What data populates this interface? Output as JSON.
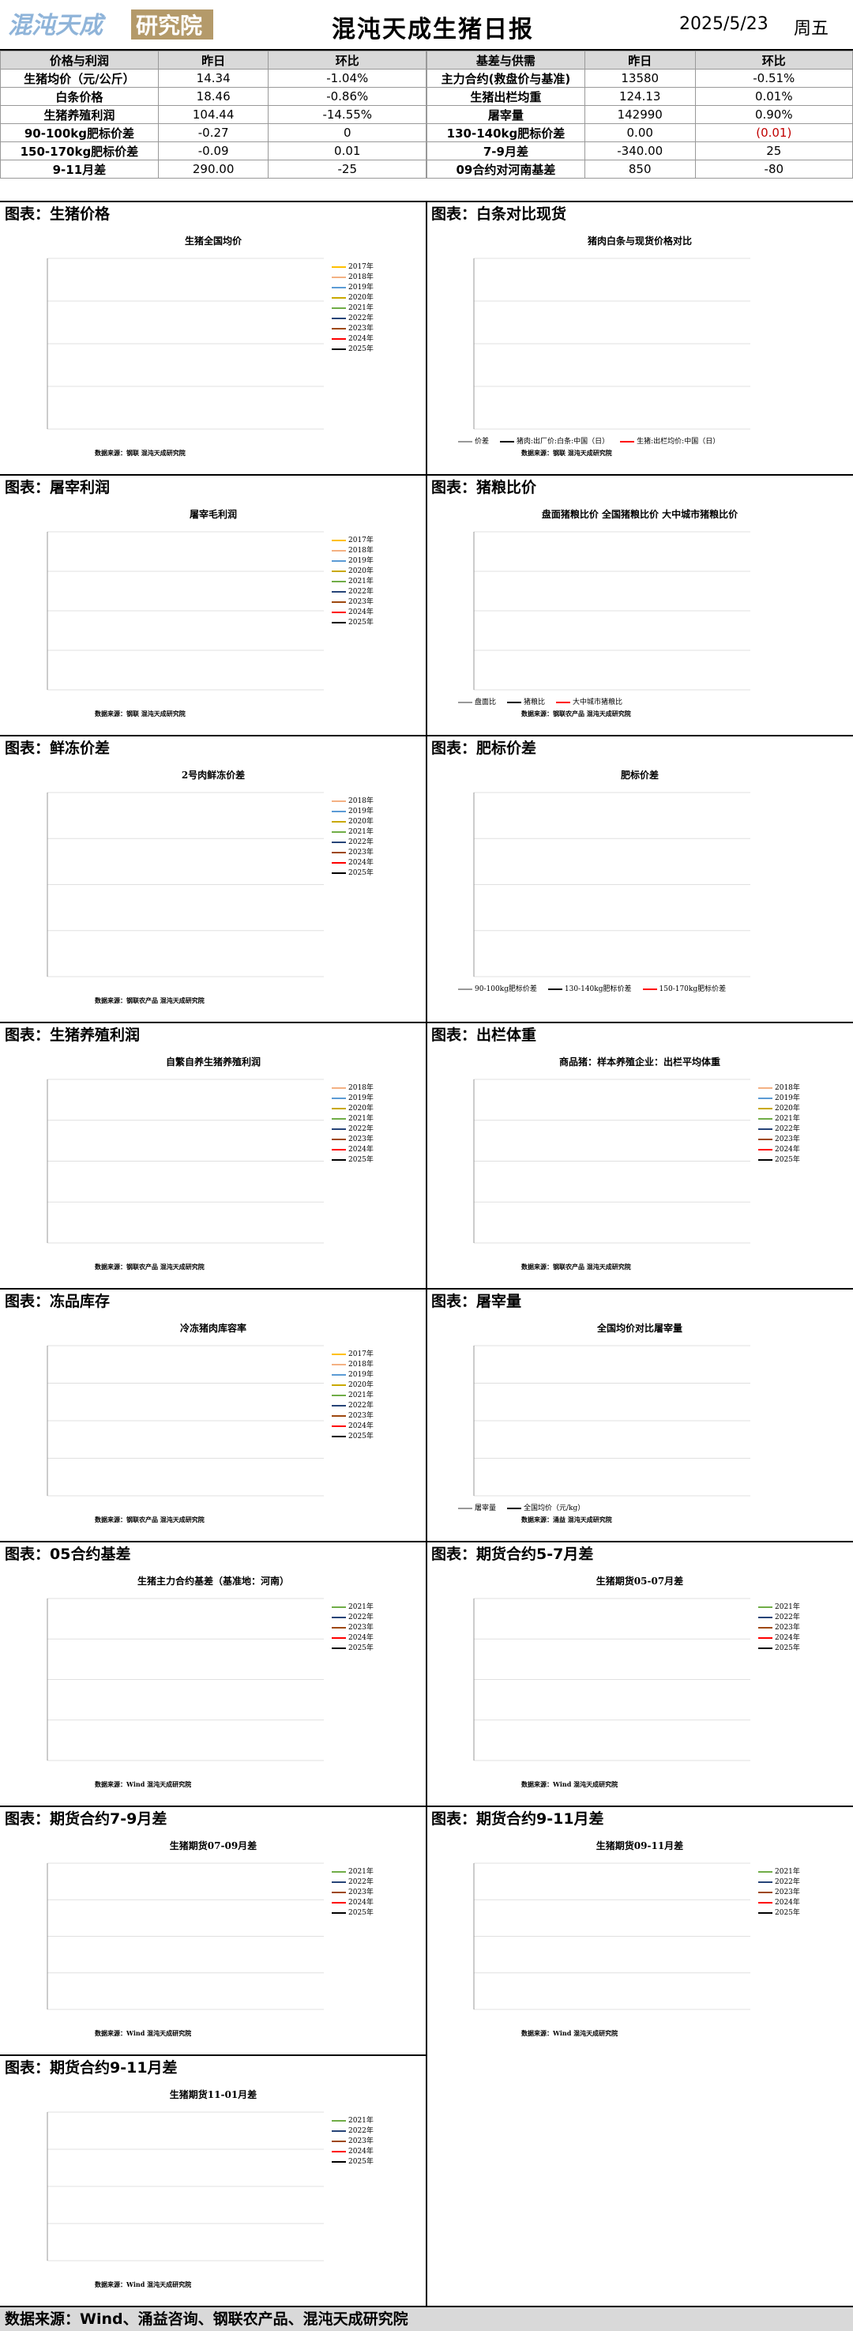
{
  "header": {
    "logo_text": "混沌天成研究院",
    "title": "混沌天成生猪日报",
    "date": "2025/5/23",
    "weekday": "周五"
  },
  "left_table": {
    "headers": [
      "价格与利润",
      "昨日",
      "环比"
    ],
    "rows": [
      [
        "生猪均价（元/公斤）",
        "14.34",
        "-1.04%"
      ],
      [
        "白条价格",
        "18.46",
        "-0.86%"
      ],
      [
        "生猪养殖利润",
        "104.44",
        "-14.55%"
      ],
      [
        "90-100kg肥标价差",
        "-0.27",
        "0"
      ],
      [
        "150-170kg肥标价差",
        "-0.09",
        "0.01"
      ],
      [
        "9-11月差",
        "290.00",
        "-25"
      ]
    ]
  },
  "right_table": {
    "headers": [
      "基差与供需",
      "昨日",
      "环比"
    ],
    "rows": [
      [
        "主力合约(救盘价与基准)",
        "13580",
        "-0.51%"
      ],
      [
        "生猪出栏均重",
        "124.13",
        "0.01%"
      ],
      [
        "屠宰量",
        "142990",
        "0.90%"
      ],
      [
        "130-140kg肥标价差",
        "0.00",
        "(0.01)"
      ],
      [
        "7-9月差",
        "-340.00",
        "25"
      ],
      [
        "09合约对河南基差",
        "850",
        "-80"
      ]
    ]
  },
  "sections": [
    {
      "heading": "图表：生猪价格",
      "chart_title": "生猪全国均价",
      "source": "数据来源：钢联 混沌天成研究院",
      "legend": [
        "2017年",
        "2018年",
        "2019年",
        "2020年",
        "2021年",
        "2022年",
        "2023年",
        "2024年",
        "2025年"
      ]
    },
    {
      "heading": "图表：白条对比现货",
      "chart_title": "猪肉白条与现货价格对比",
      "source": "数据来源：钢联 混沌天成研究院",
      "legend": [
        "价差",
        "猪肉:出厂价:白条:中国（日）",
        "生猪:出栏均价:中国（日）"
      ]
    },
    {
      "heading": "图表：屠宰利润",
      "chart_title": "屠宰毛利润",
      "source": "数据来源：钢联 混沌天成研究院",
      "legend": [
        "2017年",
        "2018年",
        "2019年",
        "2020年",
        "2021年",
        "2022年",
        "2023年",
        "2024年",
        "2025年"
      ]
    },
    {
      "heading": "图表：猪粮比价",
      "chart_title": "盘面猪粮比价 全国猪粮比价 大中城市猪粮比价",
      "source": "数据来源：钢联农产品 混沌天成研究院",
      "legend": [
        "盘面比",
        "猪粮比",
        "大中城市猪粮比"
      ]
    },
    {
      "heading": "图表：鲜冻价差",
      "chart_title": "2号肉鲜冻价差",
      "source": "数据来源：钢联农产品 混沌天成研究院",
      "legend": [
        "2018年",
        "2019年",
        "2020年",
        "2021年",
        "2022年",
        "2023年",
        "2024年",
        "2025年"
      ]
    },
    {
      "heading": "图表：肥标价差",
      "chart_title": "肥标价差",
      "source": "",
      "legend": [
        "90-100kg肥标价差",
        "130-140kg肥标价差",
        "150-170kg肥标价差"
      ]
    },
    {
      "heading": "图表：生猪养殖利润",
      "chart_title": "自繁自养生猪养殖利润",
      "source": "数据来源：钢联农产品 混沌天成研究院",
      "legend": [
        "2018年",
        "2019年",
        "2020年",
        "2021年",
        "2022年",
        "2023年",
        "2024年",
        "2025年"
      ]
    },
    {
      "heading": "图表：出栏体重",
      "chart_title": "商品猪：样本养殖企业：出栏平均体重",
      "source": "数据来源：钢联农产品 混沌天成研究院",
      "legend": [
        "2018年",
        "2019年",
        "2020年",
        "2021年",
        "2022年",
        "2023年",
        "2024年",
        "2025年"
      ]
    },
    {
      "heading": "图表：冻品库存",
      "chart_title": "冷冻猪肉库容率",
      "source": "数据来源：钢联农产品 混沌天成研究院",
      "legend": [
        "2017年",
        "2018年",
        "2019年",
        "2020年",
        "2021年",
        "2022年",
        "2023年",
        "2024年",
        "2025年"
      ]
    },
    {
      "heading": "图表：屠宰量",
      "chart_title": "全国均价对比屠宰量",
      "source": "数据来源：涌益 混沌天成研究院",
      "legend": [
        "屠宰量",
        "全国均价（元/kg）"
      ]
    },
    {
      "heading": "图表：05合约基差",
      "chart_title": "生猪主力合约基差（基准地：河南）",
      "source": "数据来源：Wind 混沌天成研究院",
      "legend": [
        "2021年",
        "2022年",
        "2023年",
        "2024年",
        "2025年"
      ]
    },
    {
      "heading": "图表：期货合约5-7月差",
      "chart_title": "生猪期货05-07月差",
      "source": "数据来源：Wind 混沌天成研究院",
      "legend": [
        "2021年",
        "2022年",
        "2023年",
        "2024年",
        "2025年"
      ]
    },
    {
      "heading": "图表：期货合约7-9月差",
      "chart_title": "生猪期货07-09月差",
      "source": "数据来源：Wind 混沌天成研究院",
      "legend": [
        "2021年",
        "2022年",
        "2023年",
        "2024年",
        "2025年"
      ]
    },
    {
      "heading": "图表：期货合约9-11月差",
      "chart_title": "生猪期货09-11月差",
      "source": "数据来源：Wind 混沌天成研究院",
      "legend": [
        "2021年",
        "2022年",
        "2023年",
        "2024年",
        "2025年"
      ]
    },
    {
      "heading": "图表：期货合约9-11月差",
      "chart_title": "生猪期货11-01月差",
      "source": "数据来源：Wind 混沌天成研究院",
      "legend": [
        "2021年",
        "2022年",
        "2023年",
        "2024年",
        "2025年"
      ]
    }
  ],
  "footer": "数据来源：Wind、涌益咨询、钢联农产品、混沌天成研究院",
  "colors": {
    "2017": "#ffc000",
    "2018": "#f4b183",
    "2019": "#5b9bd5",
    "2020": "#c9a900",
    "2021": "#70ad47",
    "2022": "#264478",
    "2023": "#9e480e",
    "2024": "#ff0000",
    "2025": "#000000"
  }
}
